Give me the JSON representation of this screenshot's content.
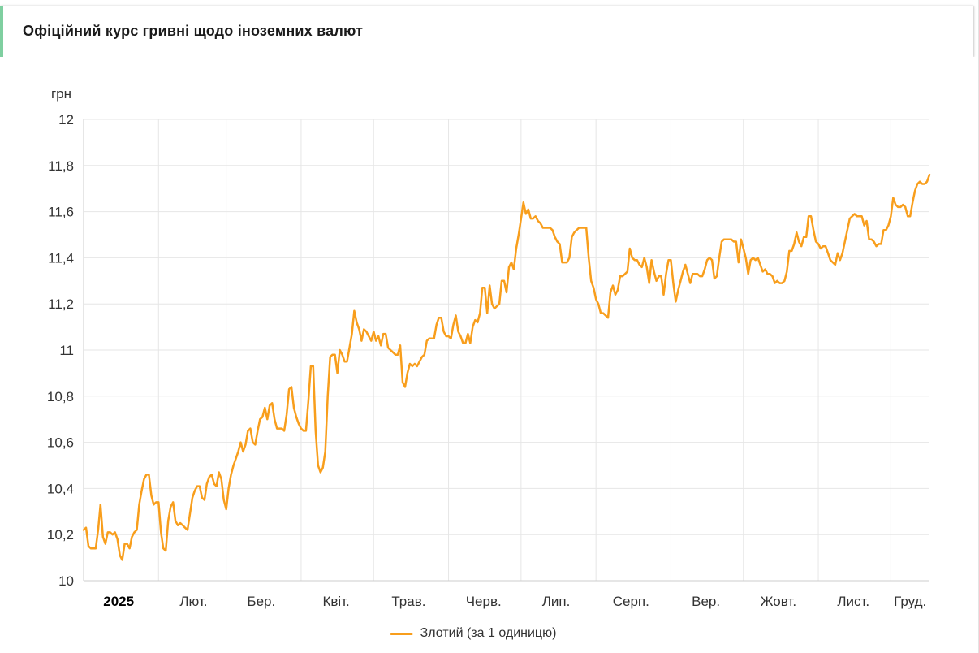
{
  "header": {
    "title": "Офіційний курс гривні щодо іноземних валют",
    "accent_color": "#7fcfa0"
  },
  "legend": {
    "label": "Злотий (за 1 одиницю)"
  },
  "chart_data": {
    "type": "line",
    "title": "Офіційний курс гривні щодо іноземних валют",
    "xlabel": "",
    "ylabel": "грн",
    "ylim": [
      10,
      12
    ],
    "y_tick_step": 0.2,
    "y_tick_labels": [
      "12",
      "11,8",
      "11,6",
      "11,4",
      "11,2",
      "11",
      "10,8",
      "10,6",
      "10,4",
      "10,2",
      "10"
    ],
    "x_tick_labels": [
      "2025",
      "Лют.",
      "Бер.",
      "Квіт.",
      "Трав.",
      "Черв.",
      "Лип.",
      "Серп.",
      "Вер.",
      "Жовт.",
      "Лист.",
      "Груд."
    ],
    "grid": true,
    "grid_color": "#e6e6e6",
    "axis_line_color": "#cccccc",
    "legend_position": "bottom-center",
    "series": [
      {
        "name": "Злотий (за 1 одиницю)",
        "color": "#f89e1c",
        "unit": "грн",
        "frequency": "daily",
        "x_start": "2025-01-01",
        "x_end": "2025-12-17",
        "monthly_values": {
          "jan": [
            10.22,
            10.23,
            10.15,
            10.14,
            10.14,
            10.14,
            10.22,
            10.33,
            10.19,
            10.16,
            10.21,
            10.21,
            10.2,
            10.21,
            10.18,
            10.11,
            10.09,
            10.16,
            10.16,
            10.14,
            10.19,
            10.21,
            10.22,
            10.33,
            10.39,
            10.44,
            10.46,
            10.46,
            10.37,
            10.33,
            10.34
          ],
          "feb": [
            10.34,
            10.21,
            10.14,
            10.13,
            10.26,
            10.32,
            10.34,
            10.26,
            10.24,
            10.25,
            10.24,
            10.23,
            10.22,
            10.29,
            10.36,
            10.39,
            10.41,
            10.41,
            10.36,
            10.35,
            10.42,
            10.45,
            10.46,
            10.42,
            10.41,
            10.47,
            10.44,
            10.35
          ],
          "mar": [
            10.31,
            10.4,
            10.46,
            10.5,
            10.53,
            10.56,
            10.6,
            10.56,
            10.59,
            10.65,
            10.66,
            10.6,
            10.59,
            10.65,
            10.7,
            10.71,
            10.75,
            10.7,
            10.76,
            10.77,
            10.7,
            10.66,
            10.66,
            10.66,
            10.65,
            10.72,
            10.83,
            10.84,
            10.75,
            10.71,
            10.68
          ],
          "apr": [
            10.66,
            10.65,
            10.65,
            10.78,
            10.93,
            10.93,
            10.65,
            10.5,
            10.47,
            10.49,
            10.56,
            10.8,
            10.97,
            10.98,
            10.98,
            10.9,
            11.0,
            10.98,
            10.95,
            10.95,
            11.01,
            11.07,
            11.17,
            11.12,
            11.09,
            11.04,
            11.09,
            11.08,
            11.06,
            11.04
          ],
          "may": [
            11.08,
            11.04,
            11.06,
            11.02,
            11.07,
            11.07,
            11.01,
            11.0,
            10.99,
            10.98,
            10.98,
            11.02,
            10.86,
            10.84,
            10.9,
            10.94,
            10.93,
            10.94,
            10.93,
            10.95,
            10.97,
            10.98,
            11.04,
            11.05,
            11.05,
            11.05,
            11.11,
            11.14,
            11.14,
            11.08,
            11.06
          ],
          "jun": [
            11.06,
            11.05,
            11.11,
            11.15,
            11.08,
            11.06,
            11.03,
            11.03,
            11.07,
            11.03,
            11.1,
            11.13,
            11.12,
            11.16,
            11.27,
            11.27,
            11.16,
            11.28,
            11.2,
            11.18,
            11.19,
            11.2,
            11.3,
            11.3,
            11.25,
            11.36,
            11.38,
            11.35,
            11.44,
            11.5
          ],
          "jul": [
            11.57,
            11.64,
            11.59,
            11.61,
            11.57,
            11.57,
            11.58,
            11.56,
            11.55,
            11.53,
            11.53,
            11.53,
            11.53,
            11.52,
            11.49,
            11.47,
            11.46,
            11.38,
            11.38,
            11.38,
            11.4,
            11.49,
            11.51,
            11.52,
            11.53,
            11.53,
            11.53,
            11.53,
            11.4,
            11.3,
            11.27
          ],
          "aug": [
            11.22,
            11.2,
            11.16,
            11.16,
            11.15,
            11.14,
            11.25,
            11.28,
            11.24,
            11.26,
            11.32,
            11.32,
            11.33,
            11.34,
            11.44,
            11.4,
            11.39,
            11.39,
            11.37,
            11.36,
            11.4,
            11.36,
            11.29,
            11.39,
            11.34,
            11.3,
            11.32,
            11.32,
            11.24,
            11.33,
            11.39
          ],
          "sep": [
            11.39,
            11.29,
            11.21,
            11.26,
            11.3,
            11.34,
            11.37,
            11.33,
            11.29,
            11.33,
            11.33,
            11.33,
            11.32,
            11.32,
            11.35,
            11.39,
            11.4,
            11.39,
            11.31,
            11.32,
            11.4,
            11.47,
            11.48,
            11.48,
            11.48,
            11.48,
            11.47,
            11.47,
            11.38,
            11.48
          ],
          "oct": [
            11.44,
            11.4,
            11.33,
            11.39,
            11.4,
            11.39,
            11.4,
            11.37,
            11.34,
            11.35,
            11.33,
            11.33,
            11.32,
            11.29,
            11.3,
            11.29,
            11.29,
            11.3,
            11.34,
            11.43,
            11.43,
            11.46,
            11.51,
            11.47,
            11.45,
            11.49,
            11.49,
            11.58,
            11.58,
            11.52,
            11.47
          ],
          "nov": [
            11.46,
            11.44,
            11.45,
            11.45,
            11.42,
            11.39,
            11.38,
            11.37,
            11.42,
            11.39,
            11.42,
            11.47,
            11.52,
            11.57,
            11.58,
            11.59,
            11.58,
            11.58,
            11.58,
            11.54,
            11.56,
            11.48,
            11.48,
            11.47,
            11.45,
            11.46,
            11.46,
            11.52,
            11.52,
            11.54
          ],
          "dec": [
            11.58,
            11.66,
            11.63,
            11.62,
            11.62,
            11.63,
            11.62,
            11.58,
            11.58,
            11.64,
            11.69,
            11.72,
            11.73,
            11.72,
            11.72,
            11.73,
            11.76
          ]
        }
      }
    ]
  }
}
